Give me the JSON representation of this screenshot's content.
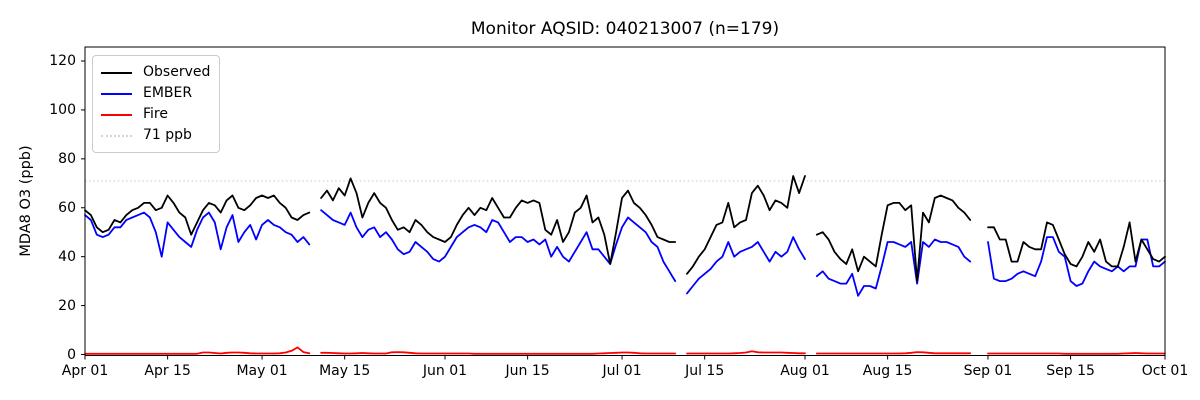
{
  "figure": {
    "title": "Monitor AQSID: 040213007 (n=179)",
    "ylabel": "MDA8 O3 (ppb)"
  },
  "legend": {
    "items": [
      {
        "label": "Observed",
        "color": "#000000",
        "style": "solid"
      },
      {
        "label": "EMBER",
        "color": "#0000ff",
        "style": "solid"
      },
      {
        "label": "Fire",
        "color": "#ff0000",
        "style": "solid"
      },
      {
        "label": "71 ppb",
        "color": "#d3d3d3",
        "style": "dotted"
      }
    ]
  },
  "chart_data": {
    "type": "line",
    "title": "Monitor AQSID: 040213007 (n=179)",
    "xlabel": "",
    "ylabel": "MDA8 O3 (ppb)",
    "n_points": 179,
    "x_unit": "daily values, day index 0 = Apr 01",
    "date_range": [
      "Apr 01",
      "Oct 01"
    ],
    "ylim": [
      0,
      126
    ],
    "yticks": [
      0,
      20,
      40,
      60,
      80,
      100,
      120
    ],
    "xticks": [
      {
        "label": "Apr 01",
        "day": 0
      },
      {
        "label": "Apr 15",
        "day": 14
      },
      {
        "label": "May 01",
        "day": 30
      },
      {
        "label": "May 15",
        "day": 44
      },
      {
        "label": "Jun 01",
        "day": 61
      },
      {
        "label": "Jun 15",
        "day": 75
      },
      {
        "label": "Jul 01",
        "day": 91
      },
      {
        "label": "Jul 15",
        "day": 105
      },
      {
        "label": "Aug 01",
        "day": 122
      },
      {
        "label": "Aug 15",
        "day": 136
      },
      {
        "label": "Sep 01",
        "day": 153
      },
      {
        "label": "Sep 15",
        "day": 167
      },
      {
        "label": "Oct 01",
        "day": 183
      }
    ],
    "grid": false,
    "legend_position": "upper-left",
    "threshold": {
      "label": "71 ppb",
      "value": 71,
      "color": "#d3d3d3",
      "style": "dotted"
    },
    "missing_days": [
      "May 10",
      "Jul 11",
      "Aug 02",
      "Aug 30",
      "Aug 31"
    ],
    "axis_color": "#000000",
    "series": [
      {
        "name": "Observed",
        "color": "#000000",
        "values": [
          59,
          57,
          52,
          50,
          51,
          55,
          54,
          57,
          59,
          60,
          62,
          62,
          59,
          60,
          65,
          62,
          58,
          56,
          49,
          54,
          59,
          62,
          61,
          58,
          63,
          65,
          60,
          59,
          61,
          64,
          65,
          64,
          65,
          62,
          60,
          56,
          55,
          57,
          58,
          null,
          64,
          67,
          63,
          68,
          65,
          72,
          66,
          56,
          62,
          66,
          62,
          60,
          55,
          51,
          52,
          50,
          55,
          53,
          50,
          48,
          47,
          46,
          48,
          53,
          57,
          60,
          57,
          60,
          59,
          64,
          60,
          56,
          56,
          60,
          63,
          62,
          63,
          62,
          51,
          49,
          55,
          46,
          50,
          58,
          60,
          65,
          54,
          56,
          49,
          37,
          50,
          64,
          67,
          62,
          60,
          57,
          53,
          48,
          47,
          46,
          46,
          null,
          33,
          36,
          40,
          43,
          48,
          53,
          54,
          62,
          52,
          54,
          55,
          66,
          69,
          65,
          59,
          63,
          62,
          60,
          73,
          66,
          73,
          null,
          49,
          50,
          47,
          42,
          39,
          37,
          43,
          34,
          40,
          38,
          36,
          49,
          61,
          62,
          62,
          59,
          61,
          30,
          58,
          54,
          64,
          65,
          64,
          63,
          60,
          58,
          55,
          null,
          null,
          52,
          52,
          47,
          47,
          38,
          38,
          46,
          44,
          43,
          43,
          54,
          53,
          47,
          41,
          37,
          36,
          40,
          46,
          42,
          47,
          38,
          36,
          36,
          44,
          54,
          38,
          47,
          43,
          39,
          38,
          40
        ]
      },
      {
        "name": "EMBER",
        "color": "#0000ff",
        "values": [
          57,
          55,
          49,
          48,
          49,
          52,
          52,
          55,
          56,
          57,
          58,
          56,
          50,
          40,
          54,
          51,
          48,
          46,
          44,
          51,
          56,
          58,
          54,
          43,
          52,
          57,
          46,
          50,
          53,
          47,
          53,
          55,
          53,
          52,
          50,
          49,
          46,
          48,
          45,
          null,
          59,
          57,
          55,
          54,
          53,
          58,
          52,
          48,
          51,
          52,
          48,
          50,
          47,
          43,
          41,
          42,
          46,
          44,
          42,
          39,
          38,
          40,
          44,
          48,
          50,
          52,
          53,
          52,
          50,
          55,
          54,
          50,
          46,
          48,
          48,
          46,
          47,
          45,
          47,
          40,
          44,
          40,
          38,
          42,
          46,
          50,
          43,
          43,
          40,
          37,
          45,
          52,
          56,
          54,
          52,
          50,
          46,
          44,
          38,
          34,
          30,
          null,
          25,
          28,
          31,
          33,
          35,
          38,
          40,
          46,
          40,
          42,
          43,
          44,
          46,
          42,
          38,
          42,
          40,
          42,
          48,
          43,
          39,
          null,
          32,
          34,
          31,
          30,
          29,
          29,
          33,
          24,
          28,
          28,
          27,
          36,
          46,
          46,
          45,
          44,
          46,
          29,
          46,
          44,
          47,
          46,
          46,
          45,
          44,
          40,
          38,
          null,
          null,
          46,
          31,
          30,
          30,
          31,
          33,
          34,
          33,
          32,
          38,
          48,
          48,
          42,
          40,
          30,
          28,
          29,
          34,
          38,
          36,
          35,
          34,
          36,
          34,
          36,
          36,
          47,
          47,
          36,
          36,
          38
        ]
      },
      {
        "name": "Fire",
        "color": "#ff0000",
        "values": [
          0.3,
          0.3,
          0.3,
          0.3,
          0.3,
          0.3,
          0.3,
          0.3,
          0.3,
          0.3,
          0.3,
          0.3,
          0.3,
          0.3,
          0.3,
          0.3,
          0.3,
          0.3,
          0.3,
          0.3,
          0.8,
          0.8,
          0.6,
          0.4,
          0.7,
          0.8,
          0.8,
          0.7,
          0.5,
          0.4,
          0.4,
          0.4,
          0.4,
          0.5,
          0.8,
          1.5,
          2.9,
          1.0,
          0.5,
          null,
          0.7,
          0.7,
          0.6,
          0.5,
          0.4,
          0.4,
          0.5,
          0.6,
          0.5,
          0.4,
          0.4,
          0.4,
          0.9,
          1.0,
          0.9,
          0.7,
          0.5,
          0.4,
          0.4,
          0.4,
          0.4,
          0.4,
          0.4,
          0.4,
          0.4,
          0.4,
          0.3,
          0.3,
          0.3,
          0.3,
          0.3,
          0.3,
          0.3,
          0.3,
          0.3,
          0.3,
          0.3,
          0.3,
          0.3,
          0.3,
          0.3,
          0.3,
          0.3,
          0.3,
          0.3,
          0.3,
          0.3,
          0.4,
          0.5,
          0.6,
          0.7,
          0.8,
          0.8,
          0.7,
          0.5,
          0.4,
          0.4,
          0.4,
          0.4,
          0.4,
          0.4,
          null,
          0.4,
          0.4,
          0.4,
          0.4,
          0.4,
          0.4,
          0.4,
          0.4,
          0.5,
          0.6,
          0.8,
          1.3,
          0.9,
          0.8,
          0.8,
          0.8,
          0.8,
          0.7,
          0.6,
          0.5,
          0.5,
          null,
          0.4,
          0.4,
          0.4,
          0.4,
          0.4,
          0.4,
          0.4,
          0.4,
          0.4,
          0.4,
          0.4,
          0.4,
          0.4,
          0.4,
          0.4,
          0.5,
          0.7,
          1.0,
          0.9,
          0.7,
          0.5,
          0.5,
          0.5,
          0.5,
          0.5,
          0.5,
          0.5,
          null,
          null,
          0.4,
          0.4,
          0.4,
          0.4,
          0.4,
          0.4,
          0.4,
          0.4,
          0.4,
          0.4,
          0.4,
          0.4,
          0.4,
          0.3,
          0.3,
          0.3,
          0.3,
          0.3,
          0.3,
          0.3,
          0.3,
          0.3,
          0.3,
          0.4,
          0.5,
          0.6,
          0.5,
          0.4,
          0.4,
          0.4,
          0.4
        ]
      }
    ]
  }
}
